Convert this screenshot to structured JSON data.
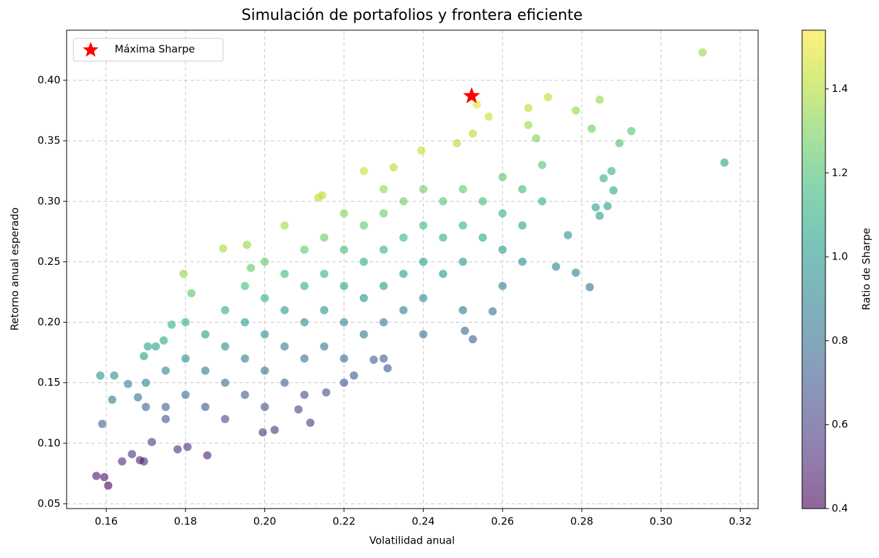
{
  "chart_data": {
    "type": "scatter",
    "title": "Simulación de portafolios y frontera eficiente",
    "xlabel": "Volatilidad anual",
    "ylabel": "Retorno anual esperado",
    "xlim": [
      0.15,
      0.3245
    ],
    "ylim": [
      0.046,
      0.4414
    ],
    "xticks": [
      0.16,
      0.18,
      {
        "value": 0.2,
        "label": "0.20"
      },
      0.22,
      0.24,
      0.26,
      0.28,
      {
        "value": 0.3,
        "label": "0.30"
      },
      0.32
    ],
    "yticks": [
      0.05,
      {
        "value": 0.1,
        "label": "0.10"
      },
      0.15,
      {
        "value": 0.2,
        "label": "0.20"
      },
      0.25,
      {
        "value": 0.3,
        "label": "0.30"
      },
      0.35,
      {
        "value": 0.4,
        "label": "0.40"
      }
    ],
    "grid": true,
    "colormap": "viridis",
    "alpha": 0.6,
    "x": [
      0.3105,
      0.316,
      0.282,
      0.2925,
      0.2895,
      0.2845,
      0.2715,
      0.2535,
      0.2665,
      0.2565,
      0.2785,
      0.2765,
      0.2735,
      0.2575,
      0.2525,
      0.2505,
      0.231,
      0.2275,
      0.2225,
      0.2155,
      0.2115,
      0.2085,
      0.2025,
      0.1995,
      0.1855,
      0.178,
      0.1805,
      0.1605,
      0.1575,
      0.1595,
      0.164,
      0.1665,
      0.1685,
      0.1695,
      0.1715,
      0.159,
      0.1585,
      0.162,
      0.1615,
      0.1655,
      0.168,
      0.1695,
      0.1705,
      0.1725,
      0.1745,
      0.1765,
      0.1795,
      0.1815,
      0.1895,
      0.1955,
      0.1965,
      0.205,
      0.2135,
      0.2145,
      0.225,
      0.2325,
      0.2395,
      0.2485,
      0.2525,
      0.2665,
      0.2685,
      0.2785,
      0.2825,
      0.2855,
      0.2865,
      0.2845,
      0.2835,
      0.2875,
      0.288,
      0.18,
      0.185,
      0.185,
      0.185,
      0.19,
      0.19,
      0.19,
      0.195,
      0.195,
      0.195,
      0.195,
      0.2,
      0.2,
      0.2,
      0.2,
      0.205,
      0.205,
      0.205,
      0.205,
      0.21,
      0.21,
      0.21,
      0.21,
      0.215,
      0.215,
      0.215,
      0.215,
      0.22,
      0.22,
      0.22,
      0.22,
      0.22,
      0.225,
      0.225,
      0.225,
      0.225,
      0.23,
      0.23,
      0.23,
      0.23,
      0.23,
      0.235,
      0.235,
      0.235,
      0.235,
      0.24,
      0.24,
      0.24,
      0.24,
      0.245,
      0.245,
      0.245,
      0.25,
      0.25,
      0.25,
      0.255,
      0.255,
      0.26,
      0.26,
      0.26,
      0.265,
      0.265,
      0.27,
      0.27,
      0.175,
      0.175,
      0.17,
      0.17,
      0.18,
      0.18,
      0.175,
      0.19,
      0.2,
      0.21,
      0.22,
      0.23,
      0.24,
      0.25,
      0.26,
      0.265
    ],
    "y": [
      0.423,
      0.332,
      0.229,
      0.358,
      0.348,
      0.384,
      0.386,
      0.38,
      0.377,
      0.37,
      0.241,
      0.272,
      0.246,
      0.209,
      0.186,
      0.193,
      0.162,
      0.169,
      0.156,
      0.142,
      0.117,
      0.128,
      0.111,
      0.109,
      0.09,
      0.095,
      0.097,
      0.065,
      0.073,
      0.072,
      0.085,
      0.091,
      0.086,
      0.085,
      0.101,
      0.116,
      0.156,
      0.156,
      0.136,
      0.149,
      0.138,
      0.172,
      0.18,
      0.18,
      0.185,
      0.198,
      0.24,
      0.224,
      0.261,
      0.264,
      0.245,
      0.28,
      0.303,
      0.305,
      0.325,
      0.328,
      0.342,
      0.348,
      0.356,
      0.363,
      0.352,
      0.375,
      0.36,
      0.319,
      0.296,
      0.288,
      0.295,
      0.325,
      0.309,
      0.14,
      0.13,
      0.16,
      0.19,
      0.15,
      0.18,
      0.21,
      0.14,
      0.17,
      0.2,
      0.23,
      0.16,
      0.19,
      0.22,
      0.25,
      0.15,
      0.18,
      0.21,
      0.24,
      0.17,
      0.2,
      0.23,
      0.26,
      0.18,
      0.21,
      0.24,
      0.27,
      0.17,
      0.2,
      0.23,
      0.26,
      0.29,
      0.19,
      0.22,
      0.25,
      0.28,
      0.2,
      0.23,
      0.26,
      0.29,
      0.31,
      0.21,
      0.24,
      0.27,
      0.3,
      0.22,
      0.25,
      0.28,
      0.31,
      0.24,
      0.27,
      0.3,
      0.25,
      0.28,
      0.31,
      0.27,
      0.3,
      0.26,
      0.29,
      0.32,
      0.28,
      0.31,
      0.3,
      0.33,
      0.13,
      0.16,
      0.13,
      0.15,
      0.17,
      0.2,
      0.12,
      0.12,
      0.13,
      0.14,
      0.15,
      0.17,
      0.19,
      0.21,
      0.23,
      0.25
    ],
    "c": [
      1.36,
      1.05,
      0.81,
      1.22,
      1.2,
      1.35,
      1.42,
      1.5,
      1.41,
      1.44,
      0.87,
      0.98,
      0.9,
      0.81,
      0.74,
      0.77,
      0.7,
      0.74,
      0.7,
      0.66,
      0.55,
      0.61,
      0.55,
      0.55,
      0.49,
      0.53,
      0.54,
      0.4,
      0.46,
      0.45,
      0.52,
      0.55,
      0.51,
      0.5,
      0.59,
      0.73,
      0.98,
      0.96,
      0.84,
      0.9,
      0.82,
      1.01,
      1.06,
      1.04,
      1.06,
      1.12,
      1.34,
      1.23,
      1.38,
      1.35,
      1.25,
      1.37,
      1.42,
      1.42,
      1.44,
      1.41,
      1.43,
      1.4,
      1.41,
      1.36,
      1.31,
      1.35,
      1.27,
      1.12,
      1.03,
      1.01,
      1.04,
      1.13,
      1.07,
      0.78,
      0.7,
      0.86,
      1.03,
      0.79,
      0.95,
      1.11,
      0.72,
      0.87,
      1.03,
      1.18,
      0.8,
      0.95,
      1.1,
      1.25,
      0.73,
      0.88,
      1.02,
      1.17,
      0.81,
      0.95,
      1.1,
      1.24,
      0.84,
      0.98,
      1.12,
      1.26,
      0.77,
      0.91,
      1.05,
      1.18,
      1.32,
      0.84,
      0.98,
      1.11,
      1.24,
      0.87,
      1.0,
      1.13,
      1.26,
      1.35,
      0.89,
      1.02,
      1.15,
      1.28,
      0.92,
      1.04,
      1.17,
      1.29,
      0.98,
      1.1,
      1.22,
      1.0,
      1.12,
      1.24,
      1.06,
      1.18,
      1.0,
      1.12,
      1.23,
      1.06,
      1.17,
      1.11,
      1.22,
      0.74,
      0.91,
      0.76,
      0.88,
      0.94,
      1.11,
      0.69,
      0.63,
      0.65,
      0.67,
      0.68,
      0.74,
      0.79,
      0.84,
      0.88,
      0.94
    ],
    "colorbar": {
      "label": "Ratio de Sharpe",
      "lim": [
        0.4,
        1.54
      ],
      "ticks": [
        0.4,
        0.6,
        0.8,
        {
          "value": 1.0,
          "label": "1.0"
        },
        1.2,
        1.4
      ]
    },
    "highlight": {
      "name": "Máxima Sharpe",
      "x": 0.2522,
      "y": 0.387,
      "color": "#ff0000",
      "marker": "star"
    },
    "legend": "upper left"
  }
}
